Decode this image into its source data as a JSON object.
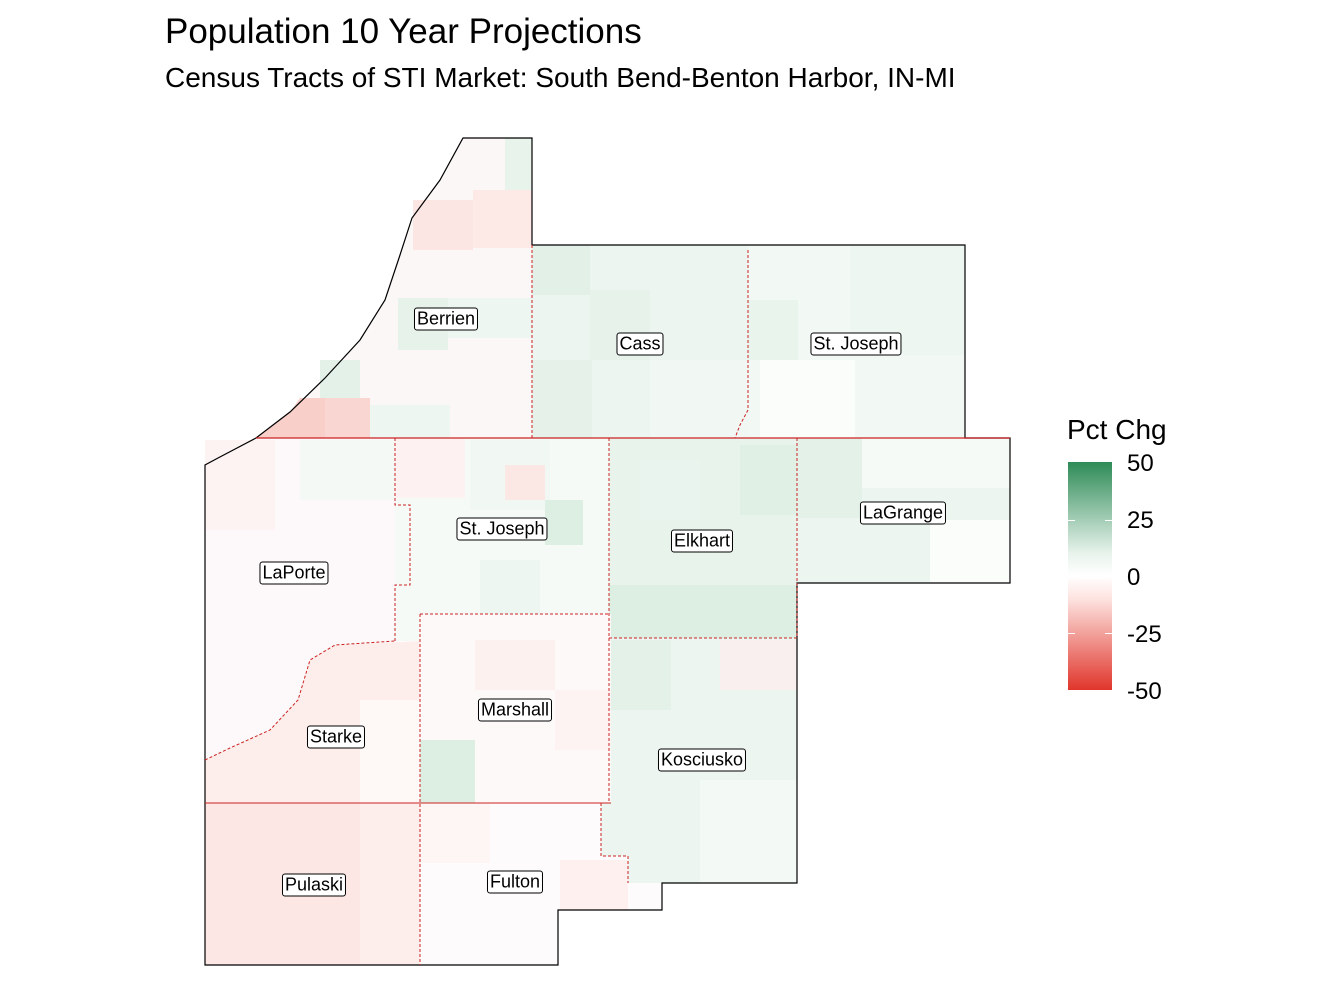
{
  "title": "Population 10 Year Projections",
  "subtitle": "Census Tracts of STI Market: South Bend-Benton Harbor, IN-MI",
  "legend": {
    "title": "Pct Chg",
    "ticks": [
      "50",
      "25",
      "0",
      "-25",
      "-50"
    ],
    "colors": {
      "high": "#2e8b57",
      "mid": "#ffffff",
      "low": "#e0352b"
    }
  },
  "counties": [
    {
      "name": "Berrien"
    },
    {
      "name": "Cass"
    },
    {
      "name": "St. Joseph"
    },
    {
      "name": "St. Joseph"
    },
    {
      "name": "LaGrange"
    },
    {
      "name": "Elkhart"
    },
    {
      "name": "LaPorte"
    },
    {
      "name": "Marshall"
    },
    {
      "name": "Starke"
    },
    {
      "name": "Kosciusko"
    },
    {
      "name": "Pulaski"
    },
    {
      "name": "Fulton"
    }
  ]
}
